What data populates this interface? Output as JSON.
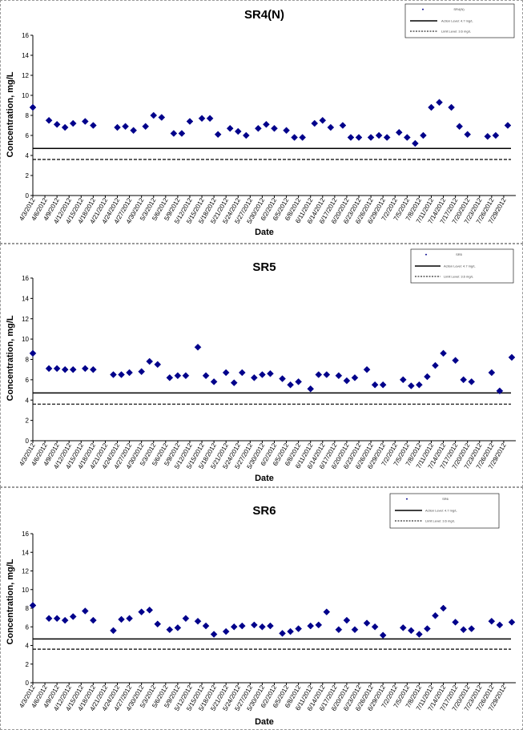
{
  "chart_data": [
    {
      "type": "scatter",
      "title": "SR4(N)",
      "xlabel": "Date",
      "ylabel": "Concentration, mg/L",
      "ylim": [
        0,
        16
      ],
      "yticks": [
        0,
        2,
        4,
        6,
        8,
        10,
        12,
        14,
        16
      ],
      "grid": false,
      "legend_position": "top-right",
      "date_labels": [
        "4/3/2012",
        "4/6/2012",
        "4/9/2012",
        "4/12/2012",
        "4/15/2012",
        "4/18/2012",
        "4/21/2012",
        "4/24/2012",
        "4/27/2012",
        "4/30/2012",
        "5/3/2012",
        "5/6/2012",
        "5/9/2012",
        "5/12/2012",
        "5/15/2012",
        "5/18/2012",
        "5/21/2012",
        "5/24/2012",
        "5/27/2012",
        "5/30/2012",
        "6/2/2012",
        "6/5/2012",
        "6/8/2012",
        "6/11/2012",
        "6/14/2012",
        "6/17/2012",
        "6/20/2012",
        "6/23/2012",
        "6/26/2012",
        "6/29/2012",
        "7/2/2012",
        "7/5/2012",
        "7/8/2012",
        "7/11/2012",
        "7/14/2012",
        "7/17/2012",
        "7/20/2012",
        "7/23/2012",
        "7/26/2012",
        "7/29/2012"
      ],
      "series": [
        {
          "name": "SR4(N)",
          "marker": "diamond",
          "color": "#00008B",
          "x": [
            "4/3/2012",
            "4/7/2012",
            "4/9/2012",
            "4/11/2012",
            "4/13/2012",
            "4/16/2012",
            "4/18/2012",
            "4/24/2012",
            "4/26/2012",
            "4/28/2012",
            "5/1/2012",
            "5/3/2012",
            "5/5/2012",
            "5/8/2012",
            "5/10/2012",
            "5/12/2012",
            "5/15/2012",
            "5/17/2012",
            "5/19/2012",
            "5/22/2012",
            "5/24/2012",
            "5/26/2012",
            "5/29/2012",
            "5/31/2012",
            "6/2/2012",
            "6/5/2012",
            "6/7/2012",
            "6/9/2012",
            "6/12/2012",
            "6/14/2012",
            "6/16/2012",
            "6/19/2012",
            "6/21/2012",
            "6/23/2012",
            "6/26/2012",
            "6/28/2012",
            "6/30/2012",
            "7/3/2012",
            "7/5/2012",
            "7/7/2012",
            "7/9/2012",
            "7/11/2012",
            "7/13/2012",
            "7/16/2012",
            "7/18/2012",
            "7/20/2012",
            "7/25/2012",
            "7/27/2012",
            "7/30/2012"
          ],
          "y": [
            8.8,
            7.5,
            7.1,
            6.8,
            7.2,
            7.4,
            7.0,
            6.8,
            6.9,
            6.5,
            6.9,
            8.0,
            7.8,
            6.2,
            6.2,
            7.4,
            7.7,
            7.7,
            6.1,
            6.7,
            6.4,
            6.0,
            6.7,
            7.1,
            6.7,
            6.5,
            5.8,
            5.8,
            7.2,
            7.5,
            6.8,
            7.0,
            5.8,
            5.8,
            5.8,
            6.0,
            5.8,
            6.3,
            5.8,
            5.2,
            6.0,
            8.8,
            9.3,
            8.8,
            6.9,
            6.1,
            5.9,
            6.0,
            7.0
          ]
        }
      ],
      "reference_lines": [
        {
          "name": "Action Level: 4.7 mg/L",
          "y": 4.7,
          "style": "solid"
        },
        {
          "name": "Limit Level: 3.6 mg/L",
          "y": 3.6,
          "style": "dashed"
        }
      ]
    },
    {
      "type": "scatter",
      "title": "SR5",
      "xlabel": "Date",
      "ylabel": "Concentration, mg/L",
      "ylim": [
        0,
        16
      ],
      "yticks": [
        0,
        2,
        4,
        6,
        8,
        10,
        12,
        14,
        16
      ],
      "grid": false,
      "legend_position": "top-right",
      "date_labels": [
        "4/3/2012",
        "4/6/2012",
        "4/9/2012",
        "4/12/2012",
        "4/15/2012",
        "4/18/2012",
        "4/21/2012",
        "4/24/2012",
        "4/27/2012",
        "4/30/2012",
        "5/3/2012",
        "5/6/2012",
        "5/9/2012",
        "5/12/2012",
        "5/15/2012",
        "5/18/2012",
        "5/21/2012",
        "5/24/2012",
        "5/27/2012",
        "5/30/2012",
        "6/2/2012",
        "6/5/2012",
        "6/8/2012",
        "6/11/2012",
        "6/14/2012",
        "6/17/2012",
        "6/20/2012",
        "6/23/2012",
        "6/26/2012",
        "6/29/2012",
        "7/2/2012",
        "7/5/2012",
        "7/8/2012",
        "7/11/2012",
        "7/14/2012",
        "7/17/2012",
        "7/20/2012",
        "7/23/2012",
        "7/26/2012",
        "7/29/2012"
      ],
      "series": [
        {
          "name": "SR5",
          "marker": "diamond",
          "color": "#00008B",
          "x": [
            "4/3/2012",
            "4/7/2012",
            "4/9/2012",
            "4/11/2012",
            "4/13/2012",
            "4/16/2012",
            "4/18/2012",
            "4/23/2012",
            "4/25/2012",
            "4/27/2012",
            "4/30/2012",
            "5/2/2012",
            "5/4/2012",
            "5/7/2012",
            "5/9/2012",
            "5/11/2012",
            "5/14/2012",
            "5/16/2012",
            "5/18/2012",
            "5/21/2012",
            "5/23/2012",
            "5/25/2012",
            "5/28/2012",
            "5/30/2012",
            "6/1/2012",
            "6/4/2012",
            "6/6/2012",
            "6/8/2012",
            "6/11/2012",
            "6/13/2012",
            "6/15/2012",
            "6/18/2012",
            "6/20/2012",
            "6/22/2012",
            "6/25/2012",
            "6/27/2012",
            "6/29/2012",
            "7/4/2012",
            "7/6/2012",
            "7/8/2012",
            "7/10/2012",
            "7/12/2012",
            "7/14/2012",
            "7/17/2012",
            "7/19/2012",
            "7/21/2012",
            "7/26/2012",
            "7/28/2012",
            "7/31/2012"
          ],
          "y": [
            8.6,
            7.1,
            7.1,
            7.0,
            7.0,
            7.1,
            7.0,
            6.5,
            6.5,
            6.7,
            6.8,
            7.8,
            7.5,
            6.2,
            6.4,
            6.4,
            9.2,
            6.4,
            5.8,
            6.7,
            5.7,
            6.7,
            6.2,
            6.5,
            6.6,
            6.1,
            5.5,
            5.8,
            5.1,
            6.5,
            6.5,
            6.4,
            5.9,
            6.2,
            7.0,
            5.5,
            5.5,
            6.0,
            5.4,
            5.5,
            6.3,
            7.4,
            8.6,
            7.9,
            6.0,
            5.8,
            6.7,
            4.9,
            8.2
          ]
        }
      ],
      "reference_lines": [
        {
          "name": "Action Level: 4.7 mg/L",
          "y": 4.7,
          "style": "solid"
        },
        {
          "name": "Limit Level: 3.6 mg/L",
          "y": 3.6,
          "style": "dashed"
        }
      ]
    },
    {
      "type": "scatter",
      "title": "SR6",
      "xlabel": "Date",
      "ylabel": "Concentration, mg/L",
      "ylim": [
        0,
        16
      ],
      "yticks": [
        0,
        2,
        4,
        6,
        8,
        10,
        12,
        14,
        16
      ],
      "grid": false,
      "legend_position": "top-right",
      "date_labels": [
        "4/3/2012",
        "4/6/2012",
        "4/9/2012",
        "4/12/2012",
        "4/15/2012",
        "4/18/2012",
        "4/21/2012",
        "4/24/2012",
        "4/27/2012",
        "4/30/2012",
        "5/3/2012",
        "5/6/2012",
        "5/9/2012",
        "5/12/2012",
        "5/15/2012",
        "5/18/2012",
        "5/21/2012",
        "5/24/2012",
        "5/27/2012",
        "5/30/2012",
        "6/2/2012",
        "6/5/2012",
        "6/8/2012",
        "6/11/2012",
        "6/14/2012",
        "6/17/2012",
        "6/20/2012",
        "6/23/2012",
        "6/26/2012",
        "6/29/2012",
        "7/2/2012",
        "7/5/2012",
        "7/8/2012",
        "7/11/2012",
        "7/14/2012",
        "7/17/2012",
        "7/20/2012",
        "7/23/2012",
        "7/26/2012",
        "7/29/2012"
      ],
      "series": [
        {
          "name": "SR6",
          "marker": "diamond",
          "color": "#00008B",
          "x": [
            "4/3/2012",
            "4/7/2012",
            "4/9/2012",
            "4/11/2012",
            "4/13/2012",
            "4/16/2012",
            "4/18/2012",
            "4/23/2012",
            "4/25/2012",
            "4/27/2012",
            "4/30/2012",
            "5/2/2012",
            "5/4/2012",
            "5/7/2012",
            "5/9/2012",
            "5/11/2012",
            "5/14/2012",
            "5/16/2012",
            "5/18/2012",
            "5/21/2012",
            "5/23/2012",
            "5/25/2012",
            "5/28/2012",
            "5/30/2012",
            "6/1/2012",
            "6/4/2012",
            "6/6/2012",
            "6/8/2012",
            "6/11/2012",
            "6/13/2012",
            "6/15/2012",
            "6/18/2012",
            "6/20/2012",
            "6/22/2012",
            "6/25/2012",
            "6/27/2012",
            "6/29/2012",
            "7/4/2012",
            "7/6/2012",
            "7/8/2012",
            "7/10/2012",
            "7/12/2012",
            "7/14/2012",
            "7/17/2012",
            "7/19/2012",
            "7/21/2012",
            "7/26/2012",
            "7/28/2012",
            "7/31/2012"
          ],
          "y": [
            8.3,
            6.9,
            6.9,
            6.7,
            7.1,
            7.7,
            6.7,
            5.6,
            6.8,
            6.9,
            7.6,
            7.8,
            6.3,
            5.7,
            5.9,
            6.9,
            6.6,
            6.1,
            5.2,
            5.5,
            6.0,
            6.1,
            6.2,
            6.0,
            6.1,
            5.3,
            5.5,
            5.8,
            6.1,
            6.2,
            7.6,
            5.7,
            6.7,
            5.7,
            6.4,
            6.0,
            5.1,
            5.9,
            5.6,
            5.2,
            5.8,
            7.2,
            8.0,
            6.5,
            5.7,
            5.8,
            6.6,
            6.2,
            6.5
          ]
        }
      ],
      "reference_lines": [
        {
          "name": "Action Level: 4.7 mg/L",
          "y": 4.7,
          "style": "solid"
        },
        {
          "name": "Limit Level: 3.6 mg/L",
          "y": 3.6,
          "style": "dashed"
        }
      ]
    }
  ]
}
